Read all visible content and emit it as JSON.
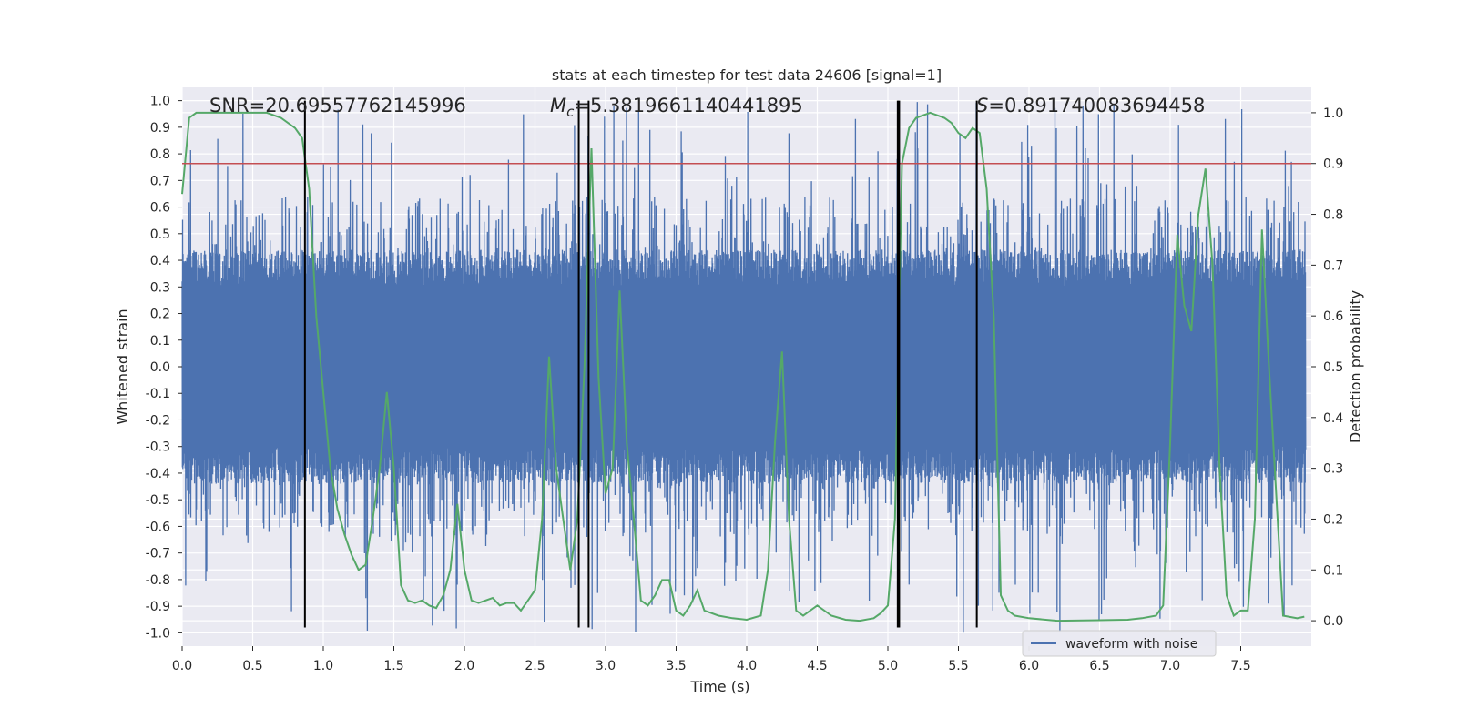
{
  "chart_data": {
    "type": "line",
    "title": "stats at each timestep for test data 24606 [signal=1]",
    "xlabel": "Time (s)",
    "ylabel": "Whitened strain",
    "y2label": "Detection probability",
    "xlim": [
      0,
      8
    ],
    "ylim": [
      -1.05,
      1.05
    ],
    "y2lim": [
      -0.05,
      1.05
    ],
    "grid": true,
    "legend": {
      "position": "lower-right",
      "entries": [
        "waveform with noise"
      ]
    },
    "x_ticks": [
      "0.0",
      "0.5",
      "1.0",
      "1.5",
      "2.0",
      "2.5",
      "3.0",
      "3.5",
      "4.0",
      "4.5",
      "5.0",
      "5.5",
      "6.0",
      "6.5",
      "7.0",
      "7.5"
    ],
    "y_ticks": [
      "1.0",
      "0.9",
      "0.8",
      "0.7",
      "0.6",
      "0.5",
      "0.4",
      "0.3",
      "0.2",
      "0.1",
      "0.0",
      "-0.1",
      "-0.2",
      "-0.3",
      "-0.4",
      "-0.5",
      "-0.6",
      "-0.7",
      "-0.8",
      "-0.9",
      "-1.0"
    ],
    "y2_ticks": [
      "1.0",
      "0.9",
      "0.8",
      "0.7",
      "0.6",
      "0.5",
      "0.4",
      "0.3",
      "0.2",
      "0.1",
      "0.0"
    ],
    "annotations": {
      "snr": "SNR=20.69557762145996",
      "mc_symbol": "M",
      "mc_sub": "c",
      "mc_value": "=5.3819661140441895",
      "s_symbol": "S",
      "s_value": "=0.891740083694458"
    },
    "threshold_line": {
      "y2": 0.9,
      "color": "#c44e52"
    },
    "vertical_lines_x": [
      0.87,
      2.81,
      2.88,
      5.07,
      5.08,
      5.63
    ],
    "series": [
      {
        "name": "waveform with noise",
        "color": "#4c72b0",
        "kind": "strain",
        "envelope": {
          "typical_low": -0.42,
          "typical_high": 0.42,
          "peak_low": -1.0,
          "peak_high": 1.0
        }
      },
      {
        "color": "#55a868",
        "kind": "probability",
        "x": [
          0.0,
          0.05,
          0.1,
          0.2,
          0.3,
          0.4,
          0.5,
          0.6,
          0.7,
          0.8,
          0.85,
          0.9,
          0.95,
          1.0,
          1.05,
          1.1,
          1.15,
          1.2,
          1.25,
          1.3,
          1.35,
          1.4,
          1.45,
          1.5,
          1.55,
          1.6,
          1.65,
          1.7,
          1.75,
          1.8,
          1.85,
          1.9,
          1.95,
          2.0,
          2.05,
          2.1,
          2.15,
          2.2,
          2.25,
          2.3,
          2.35,
          2.4,
          2.45,
          2.5,
          2.55,
          2.6,
          2.65,
          2.7,
          2.75,
          2.8,
          2.85,
          2.9,
          2.95,
          3.0,
          3.05,
          3.1,
          3.15,
          3.2,
          3.25,
          3.3,
          3.35,
          3.4,
          3.45,
          3.5,
          3.55,
          3.6,
          3.65,
          3.7,
          3.8,
          3.9,
          4.0,
          4.1,
          4.15,
          4.2,
          4.25,
          4.3,
          4.35,
          4.4,
          4.5,
          4.6,
          4.7,
          4.8,
          4.9,
          4.95,
          5.0,
          5.05,
          5.1,
          5.15,
          5.2,
          5.3,
          5.4,
          5.45,
          5.5,
          5.55,
          5.6,
          5.65,
          5.7,
          5.75,
          5.8,
          5.85,
          5.9,
          6.0,
          6.2,
          6.5,
          6.7,
          6.8,
          6.9,
          6.95,
          7.0,
          7.05,
          7.1,
          7.15,
          7.2,
          7.25,
          7.3,
          7.35,
          7.4,
          7.45,
          7.5,
          7.55,
          7.6,
          7.65,
          7.7,
          7.8,
          7.9,
          7.95
        ],
        "y": [
          0.84,
          0.99,
          1.0,
          1.0,
          1.0,
          1.0,
          1.0,
          1.0,
          0.99,
          0.97,
          0.95,
          0.85,
          0.6,
          0.45,
          0.3,
          0.22,
          0.17,
          0.13,
          0.1,
          0.11,
          0.2,
          0.3,
          0.45,
          0.3,
          0.07,
          0.04,
          0.035,
          0.04,
          0.03,
          0.025,
          0.05,
          0.1,
          0.23,
          0.1,
          0.04,
          0.035,
          0.04,
          0.045,
          0.03,
          0.035,
          0.035,
          0.02,
          0.04,
          0.06,
          0.2,
          0.52,
          0.3,
          0.2,
          0.1,
          0.2,
          0.5,
          0.93,
          0.48,
          0.25,
          0.3,
          0.65,
          0.35,
          0.2,
          0.04,
          0.03,
          0.05,
          0.08,
          0.08,
          0.02,
          0.01,
          0.03,
          0.06,
          0.02,
          0.01,
          0.005,
          0.002,
          0.01,
          0.1,
          0.35,
          0.53,
          0.2,
          0.02,
          0.01,
          0.03,
          0.01,
          0.002,
          0.0,
          0.005,
          0.015,
          0.03,
          0.2,
          0.9,
          0.97,
          0.99,
          1.0,
          0.99,
          0.98,
          0.96,
          0.95,
          0.97,
          0.96,
          0.85,
          0.6,
          0.05,
          0.02,
          0.01,
          0.005,
          0.0,
          0.001,
          0.002,
          0.005,
          0.01,
          0.03,
          0.35,
          0.76,
          0.62,
          0.57,
          0.8,
          0.89,
          0.7,
          0.3,
          0.05,
          0.01,
          0.02,
          0.02,
          0.2,
          0.77,
          0.5,
          0.01,
          0.005,
          0.008
        ]
      }
    ]
  }
}
